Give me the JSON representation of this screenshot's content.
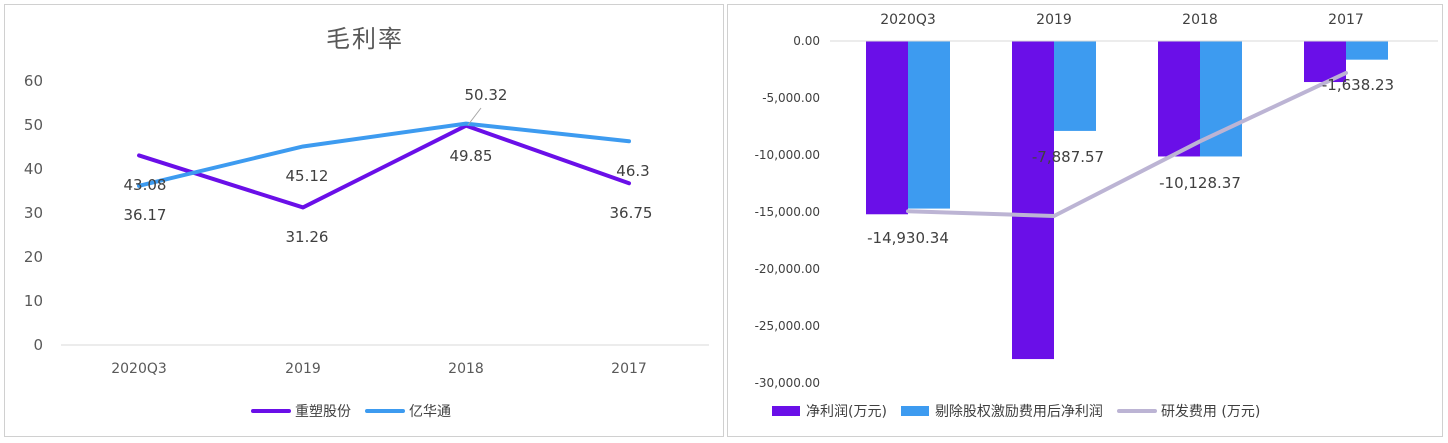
{
  "colors": {
    "purple": "#6a0fe8",
    "blue": "#3d9bf0",
    "gray_line": "#bcb4d4",
    "axis": "#d9d9d9"
  },
  "chart_data": [
    {
      "type": "line",
      "title": "毛利率",
      "categories": [
        "2020Q3",
        "2019",
        "2018",
        "2017"
      ],
      "ylim": [
        0,
        60
      ],
      "y_ticks": [
        "0",
        "10",
        "20",
        "30",
        "40",
        "50",
        "60"
      ],
      "grid": false,
      "legend_position": "bottom",
      "series": [
        {
          "name": "重塑股份",
          "color": "#6a0fe8",
          "values": [
            43.08,
            31.26,
            49.85,
            36.75
          ],
          "labels": [
            "43.08",
            "31.26",
            "49.85",
            "36.75"
          ]
        },
        {
          "name": "亿华通",
          "color": "#3d9bf0",
          "values": [
            36.17,
            45.12,
            50.32,
            46.3
          ],
          "labels": [
            "36.17",
            "45.12",
            "50.32",
            "46.3"
          ]
        }
      ]
    },
    {
      "type": "bar",
      "title": "",
      "categories": [
        "2020Q3",
        "2019",
        "2018",
        "2017"
      ],
      "ylim": [
        -30000,
        0
      ],
      "y_ticks": [
        "0.00",
        "-5,000.00",
        "-10,000.00",
        "-15,000.00",
        "-20,000.00",
        "-25,000.00",
        "-30,000.00"
      ],
      "x_axis_position": "top",
      "legend_position": "bottom",
      "series": [
        {
          "name": "净利润(万元)",
          "type": "bar",
          "color": "#6a0fe8",
          "values": [
            -15200,
            -27900,
            -10128.37,
            -3600
          ]
        },
        {
          "name": "剔除股权激励费用后净利润",
          "type": "bar",
          "color": "#3d9bf0",
          "values": [
            -14700,
            -7887.57,
            -10128.37,
            -1638.23
          ]
        },
        {
          "name": "研发费用 (万元)",
          "type": "line",
          "color": "#bcb4d4",
          "values": [
            -14930.34,
            -15350,
            -8800,
            -2800
          ]
        }
      ],
      "data_labels": [
        "-14,930.34",
        "-7,887.57",
        "-10,128.37",
        "-1,638.23"
      ]
    }
  ]
}
